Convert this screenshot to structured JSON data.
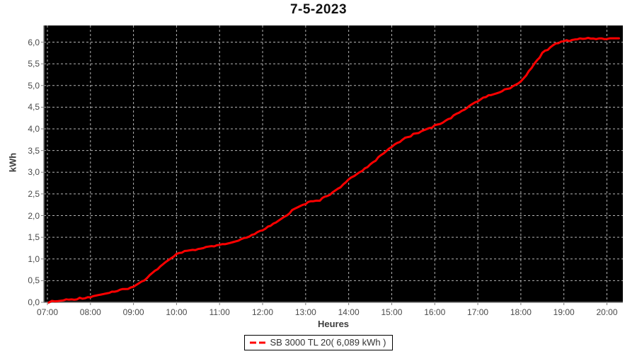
{
  "chart_data": {
    "type": "line",
    "title": "7-5-2023",
    "xlabel": "Heures",
    "ylabel": "kWh",
    "grid": true,
    "legend_position": "bottom-center",
    "plot_bg": "#000000",
    "grid_color": "#c8c8c8",
    "axis_color": "#7f7f7f",
    "xlim_hours": [
      6.918,
      20.37
    ],
    "ylim": [
      0,
      6.384
    ],
    "x_tick_hours": [
      7,
      8,
      9,
      10,
      11,
      12,
      13,
      14,
      15,
      16,
      17,
      18,
      19,
      20
    ],
    "x_tick_labels": [
      "07:00",
      "08:00",
      "09:00",
      "10:00",
      "11:00",
      "12:00",
      "13:00",
      "14:00",
      "15:00",
      "16:00",
      "17:00",
      "18:00",
      "19:00",
      "20:00"
    ],
    "y_tick_values": [
      0,
      0.5,
      1,
      1.5,
      2,
      2.5,
      3,
      3.5,
      4,
      4.5,
      5,
      5.5,
      6
    ],
    "y_tick_labels": [
      "0,0",
      "0,5",
      "1,0",
      "1,5",
      "2,0",
      "2,5",
      "3,0",
      "3,5",
      "4,0",
      "4,5",
      "5,0",
      "5,5",
      "6,0"
    ],
    "series": [
      {
        "name": "SB 3000 TL 20",
        "legend_label": "SB 3000 TL 20( 6,089 kWh )",
        "total_display": "6,089 kWh",
        "color": "#ff0000",
        "x_hours": [
          7.03,
          7.25,
          7.5,
          7.75,
          8,
          8.25,
          8.5,
          8.75,
          9,
          9.25,
          9.5,
          9.75,
          10,
          10.25,
          10.5,
          10.75,
          11,
          11.25,
          11.5,
          11.75,
          12,
          12.25,
          12.5,
          12.75,
          13,
          13.17,
          13.33,
          13.5,
          13.75,
          14,
          14.25,
          14.5,
          14.75,
          15,
          15.25,
          15.5,
          15.75,
          16,
          16.25,
          16.5,
          16.75,
          17,
          17.25,
          17.5,
          17.75,
          18,
          18.25,
          18.5,
          18.75,
          19,
          19.25,
          19.5,
          19.75,
          20,
          20.28
        ],
        "y_kwh": [
          0.01,
          0.03,
          0.06,
          0.09,
          0.13,
          0.18,
          0.23,
          0.29,
          0.36,
          0.52,
          0.73,
          0.93,
          1.1,
          1.19,
          1.23,
          1.27,
          1.31,
          1.37,
          1.44,
          1.54,
          1.66,
          1.8,
          1.97,
          2.16,
          2.28,
          2.33,
          2.36,
          2.45,
          2.62,
          2.82,
          3.0,
          3.18,
          3.38,
          3.6,
          3.75,
          3.87,
          3.97,
          4.07,
          4.19,
          4.33,
          4.5,
          4.65,
          4.76,
          4.84,
          4.95,
          5.08,
          5.42,
          5.74,
          5.93,
          6.02,
          6.06,
          6.08,
          6.085,
          6.088,
          6.089
        ]
      }
    ]
  }
}
